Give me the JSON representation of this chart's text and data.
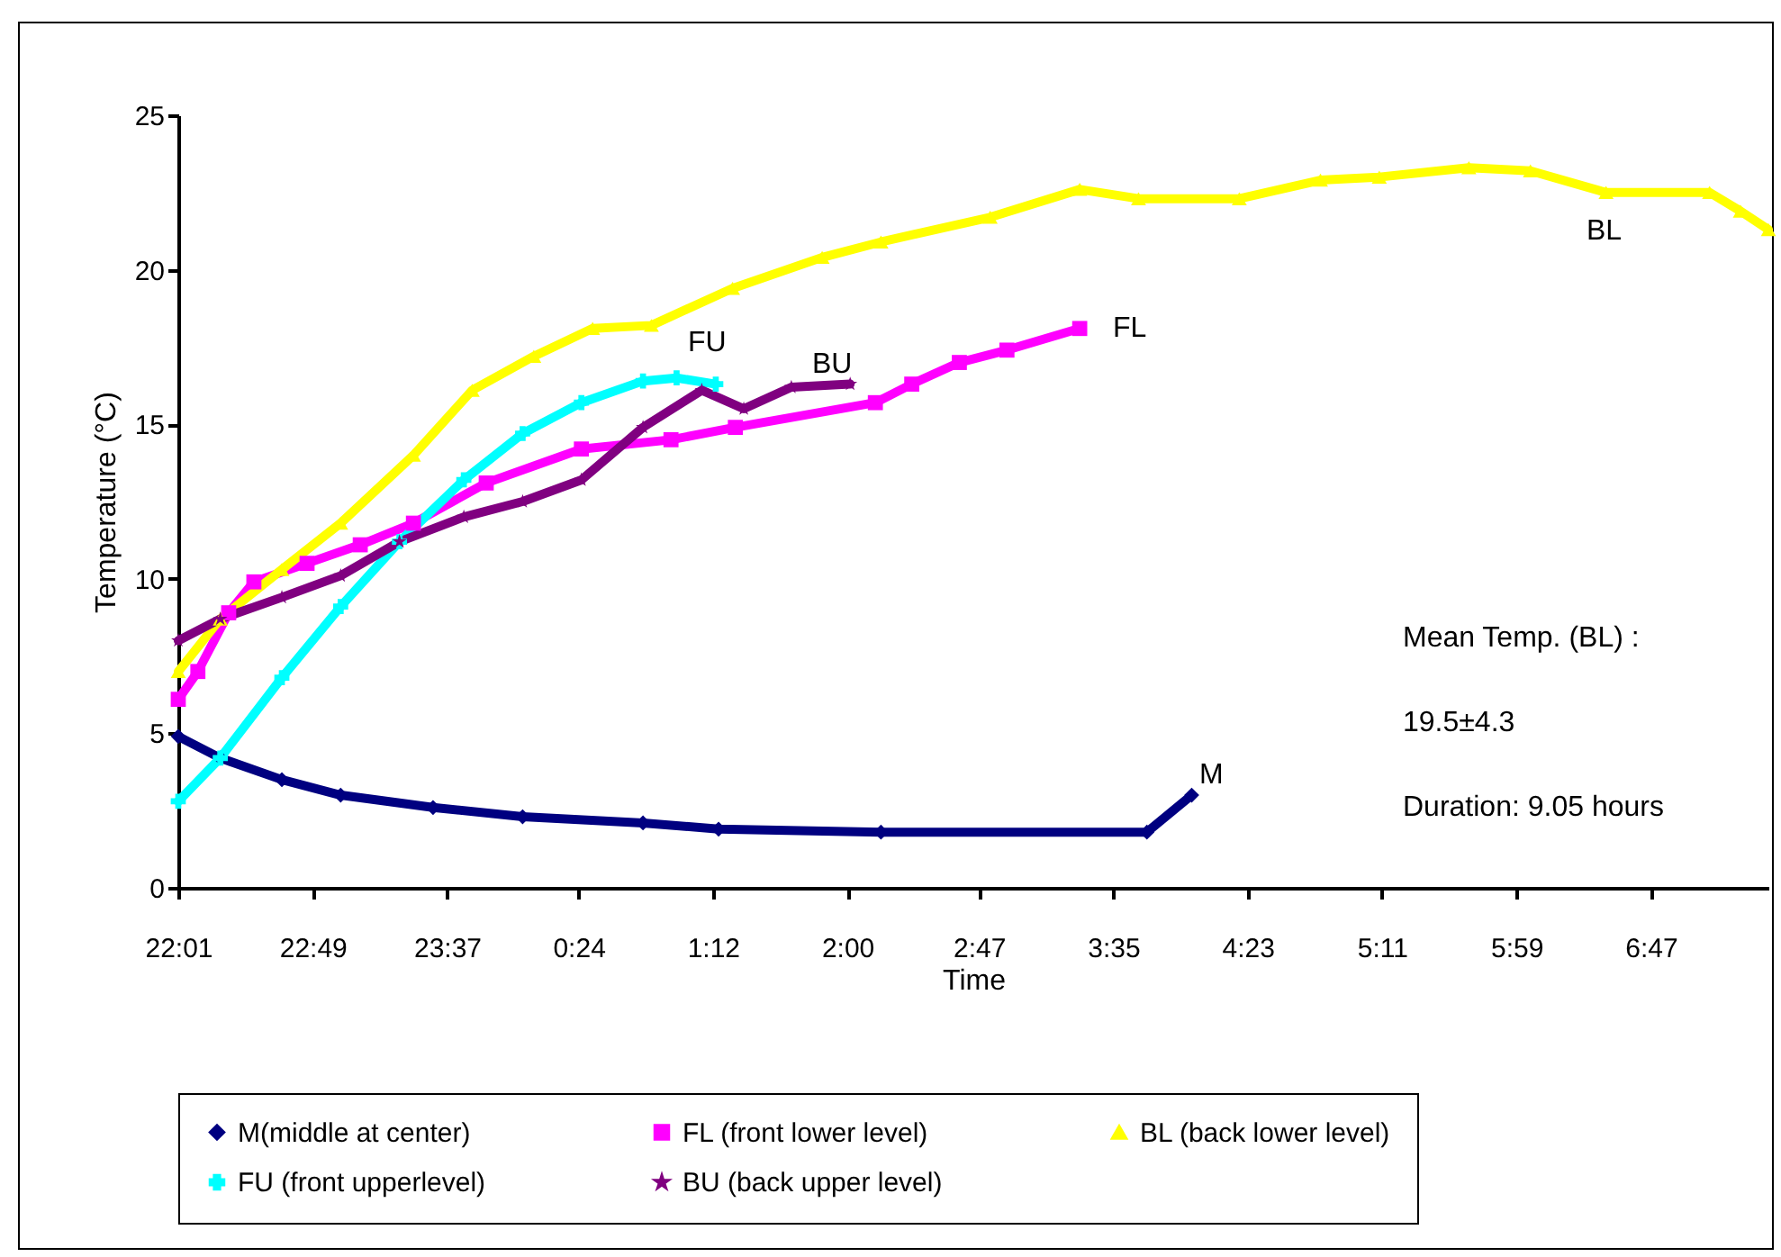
{
  "chart_data": {
    "type": "line",
    "xlabel": "Time",
    "ylabel": "Temperature (°C)",
    "xlim": [
      "2000-01-01T22:01",
      "2000-01-02T07:29"
    ],
    "ylim": [
      0,
      25
    ],
    "yticks": [
      0,
      5,
      10,
      15,
      20,
      25
    ],
    "xticks": [
      {
        "value": "2000-01-01T22:01",
        "label": "22:01"
      },
      {
        "value": "2000-01-01T22:49",
        "label": "22:49"
      },
      {
        "value": "2000-01-01T23:37",
        "label": "23:37"
      },
      {
        "value": "2000-01-02T00:24",
        "label": "0:24"
      },
      {
        "value": "2000-01-02T01:12",
        "label": "1:12"
      },
      {
        "value": "2000-01-02T02:00",
        "label": "2:00"
      },
      {
        "value": "2000-01-02T02:47",
        "label": "2:47"
      },
      {
        "value": "2000-01-02T03:35",
        "label": "3:35"
      },
      {
        "value": "2000-01-02T04:23",
        "label": "4:23"
      },
      {
        "value": "2000-01-02T05:11",
        "label": "5:11"
      },
      {
        "value": "2000-01-02T05:59",
        "label": "5:59"
      },
      {
        "value": "2000-01-02T06:47",
        "label": "6:47"
      }
    ],
    "legend": "bottom",
    "line_style": "solid",
    "series": [
      {
        "name": "M(middle at center)",
        "color": "#000080",
        "marker": "diamond",
        "x": [
          "2000-01-01T22:01",
          "2000-01-01T22:16",
          "2000-01-01T22:38",
          "2000-01-01T22:59",
          "2000-01-01T23:32",
          "2000-01-02T00:04",
          "2000-01-02T00:47",
          "2000-01-02T01:14",
          "2000-01-02T02:12",
          "2000-01-02T03:47",
          "2000-01-02T04:03"
        ],
        "values": [
          4.9,
          4.2,
          3.5,
          3.0,
          2.6,
          2.3,
          2.1,
          1.9,
          1.8,
          1.8,
          3.0
        ]
      },
      {
        "name": "FL (front lower level)",
        "color": "#ff00ff",
        "marker": "square",
        "x": [
          "2000-01-01T22:01",
          "2000-01-01T22:08",
          "2000-01-01T22:19",
          "2000-01-01T22:28",
          "2000-01-01T22:47",
          "2000-01-01T23:06",
          "2000-01-01T23:25",
          "2000-01-01T23:51",
          "2000-01-02T00:25",
          "2000-01-02T00:57",
          "2000-01-02T01:20",
          "2000-01-02T02:10",
          "2000-01-02T02:23",
          "2000-01-02T02:40",
          "2000-01-02T02:57",
          "2000-01-02T03:23"
        ],
        "values": [
          6.1,
          7.0,
          8.9,
          9.9,
          10.5,
          11.1,
          11.8,
          13.1,
          14.2,
          14.5,
          14.9,
          15.7,
          16.3,
          17.0,
          17.4,
          18.1
        ]
      },
      {
        "name": "BL (back lower level)",
        "color": "#ffff00",
        "marker": "triangle",
        "x": [
          "2000-01-01T22:01",
          "2000-01-01T22:16",
          "2000-01-01T22:38",
          "2000-01-01T22:59",
          "2000-01-01T23:25",
          "2000-01-01T23:46",
          "2000-01-02T00:08",
          "2000-01-02T00:29",
          "2000-01-02T00:50",
          "2000-01-02T01:19",
          "2000-01-02T01:51",
          "2000-01-02T02:12",
          "2000-01-02T02:51",
          "2000-01-02T03:23",
          "2000-01-02T03:44",
          "2000-01-02T04:20",
          "2000-01-02T04:49",
          "2000-01-02T05:10",
          "2000-01-02T05:42",
          "2000-01-02T06:04",
          "2000-01-02T06:31",
          "2000-01-02T07:08",
          "2000-01-02T07:19",
          "2000-01-02T07:29"
        ],
        "values": [
          7.0,
          8.7,
          10.3,
          11.8,
          14.0,
          16.1,
          17.2,
          18.1,
          18.2,
          19.4,
          20.4,
          20.9,
          21.7,
          22.6,
          22.3,
          22.3,
          22.9,
          23.0,
          23.3,
          23.2,
          22.5,
          22.5,
          21.9,
          21.3
        ]
      },
      {
        "name": "FU (front upperlevel)",
        "color": "#00ffff",
        "marker": "cross",
        "x": [
          "2000-01-01T22:01",
          "2000-01-01T22:16",
          "2000-01-01T22:38",
          "2000-01-01T22:59",
          "2000-01-01T23:20",
          "2000-01-01T23:43",
          "2000-01-02T00:04",
          "2000-01-02T00:25",
          "2000-01-02T00:47",
          "2000-01-02T00:59",
          "2000-01-02T01:13"
        ],
        "values": [
          2.8,
          4.2,
          6.8,
          9.1,
          11.2,
          13.2,
          14.7,
          15.7,
          16.4,
          16.5,
          16.3
        ]
      },
      {
        "name": "BU (back upper level)",
        "color": "#800080",
        "marker": "star",
        "x": [
          "2000-01-01T22:01",
          "2000-01-01T22:16",
          "2000-01-01T22:38",
          "2000-01-01T22:59",
          "2000-01-01T23:20",
          "2000-01-01T23:43",
          "2000-01-02T00:04",
          "2000-01-02T00:25",
          "2000-01-02T00:47",
          "2000-01-02T01:08",
          "2000-01-02T01:23",
          "2000-01-02T01:40",
          "2000-01-02T02:01"
        ],
        "values": [
          8.0,
          8.7,
          9.4,
          10.1,
          11.2,
          12.0,
          12.5,
          13.2,
          14.9,
          16.1,
          15.5,
          16.2,
          16.3
        ]
      }
    ],
    "annotations": [
      "BL",
      "FL",
      "FU",
      "BU",
      "M",
      "Mean Temp. (BL) :",
      "19.5±4.3",
      "Duration: 9.05 hours"
    ]
  }
}
